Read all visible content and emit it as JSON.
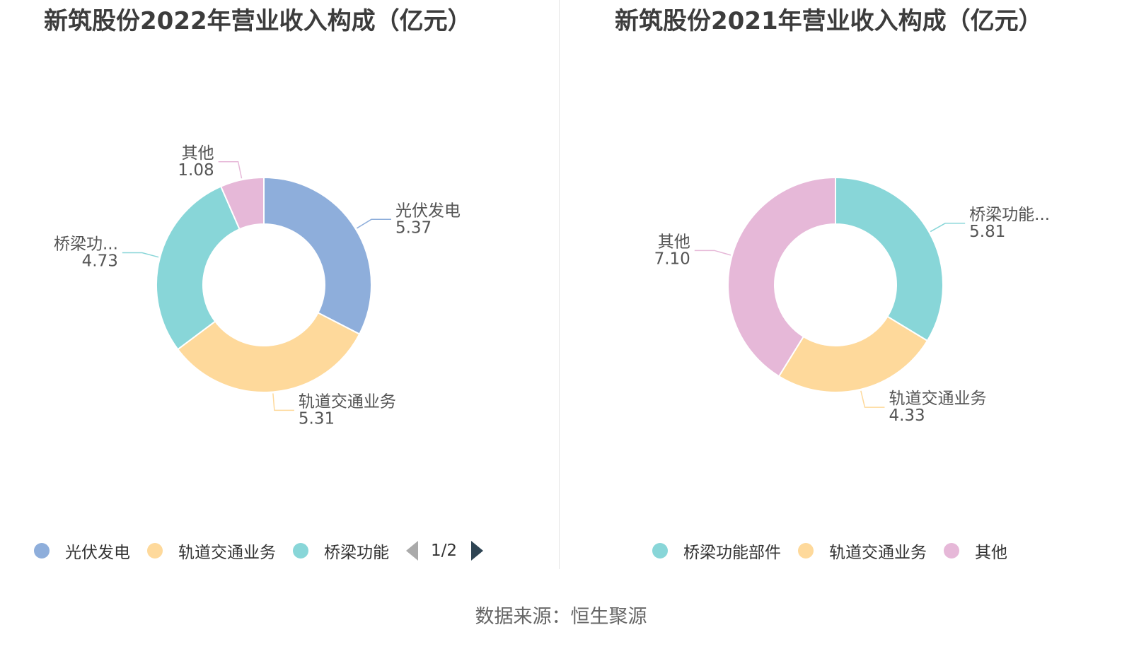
{
  "source_text": "数据来源：恒生聚源",
  "chart_data": [
    {
      "type": "pie",
      "title": "新筑股份2022年营业收入构成（亿元）",
      "donut": true,
      "slices": [
        {
          "name": "光伏发电",
          "label_name": "光伏发电",
          "value": 5.37,
          "value_label": "5.37",
          "color": "#8eaedb"
        },
        {
          "name": "轨道交通业务",
          "label_name": "轨道交通业务",
          "value": 5.31,
          "value_label": "5.31",
          "color": "#fed99b"
        },
        {
          "name": "桥梁功能部件",
          "label_name": "桥梁功...",
          "value": 4.73,
          "value_label": "4.73",
          "color": "#88d6d8"
        },
        {
          "name": "其他",
          "label_name": "其他",
          "value": 1.08,
          "value_label": "1.08",
          "color": "#e6b8d8"
        }
      ],
      "legend": {
        "items": [
          "光伏发电",
          "轨道交通业务",
          "桥梁功能"
        ],
        "colors": [
          "#8eaedb",
          "#fed99b",
          "#88d6d8"
        ],
        "page": "1/2"
      }
    },
    {
      "type": "pie",
      "title": "新筑股份2021年营业收入构成（亿元）",
      "donut": true,
      "slices": [
        {
          "name": "桥梁功能部件",
          "label_name": "桥梁功能...",
          "value": 5.81,
          "value_label": "5.81",
          "color": "#88d6d8"
        },
        {
          "name": "轨道交通业务",
          "label_name": "轨道交通业务",
          "value": 4.33,
          "value_label": "4.33",
          "color": "#fed99b"
        },
        {
          "name": "其他",
          "label_name": "其他",
          "value": 7.1,
          "value_label": "7.10",
          "color": "#e6b8d8"
        }
      ],
      "legend": {
        "items": [
          "桥梁功能部件",
          "轨道交通业务",
          "其他"
        ],
        "colors": [
          "#88d6d8",
          "#fed99b",
          "#e6b8d8"
        ]
      }
    }
  ]
}
